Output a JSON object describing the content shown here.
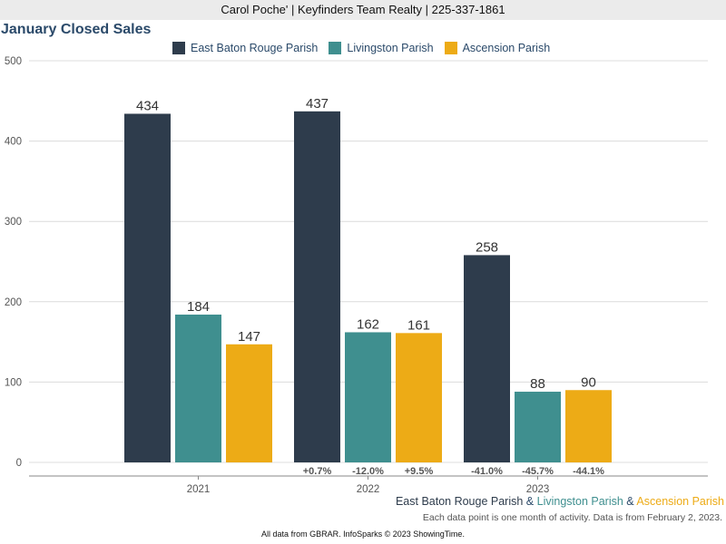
{
  "header": {
    "text": "Carol Poche' | Keyfinders Team Realty | 225-337-1861"
  },
  "colors": {
    "east_baton_rouge": "#2e3c4c",
    "livingston": "#3f8f8f",
    "ascension": "#edab16"
  },
  "chart_data": {
    "type": "bar",
    "title": "January Closed Sales",
    "categories": [
      "2021",
      "2022",
      "2023"
    ],
    "ylim": [
      0,
      500
    ],
    "yticks": [
      "0",
      "100",
      "200",
      "300",
      "400",
      "500"
    ],
    "grid": true,
    "legend_position": "top",
    "series": [
      {
        "name": "East Baton Rouge Parish",
        "values": [
          434,
          437,
          258
        ],
        "changes": [
          "",
          "+0.7%",
          "-41.0%"
        ]
      },
      {
        "name": "Livingston Parish",
        "values": [
          184,
          162,
          88
        ],
        "changes": [
          "",
          "-12.0%",
          "-45.7%"
        ]
      },
      {
        "name": "Ascension Parish",
        "values": [
          147,
          161,
          90
        ],
        "changes": [
          "",
          "+9.5%",
          "-44.1%"
        ]
      }
    ]
  },
  "footer": {
    "region_1": "East Baton Rouge Parish",
    "connector_1": " & ",
    "region_2": "Livingston Parish",
    "connector_2": " & ",
    "region_3": "Ascension Parish",
    "note": "Each data point is one month of activity. Data is from February 2, 2023.",
    "credit": "All data from GBRAR. InfoSparks © 2023 ShowingTime."
  }
}
